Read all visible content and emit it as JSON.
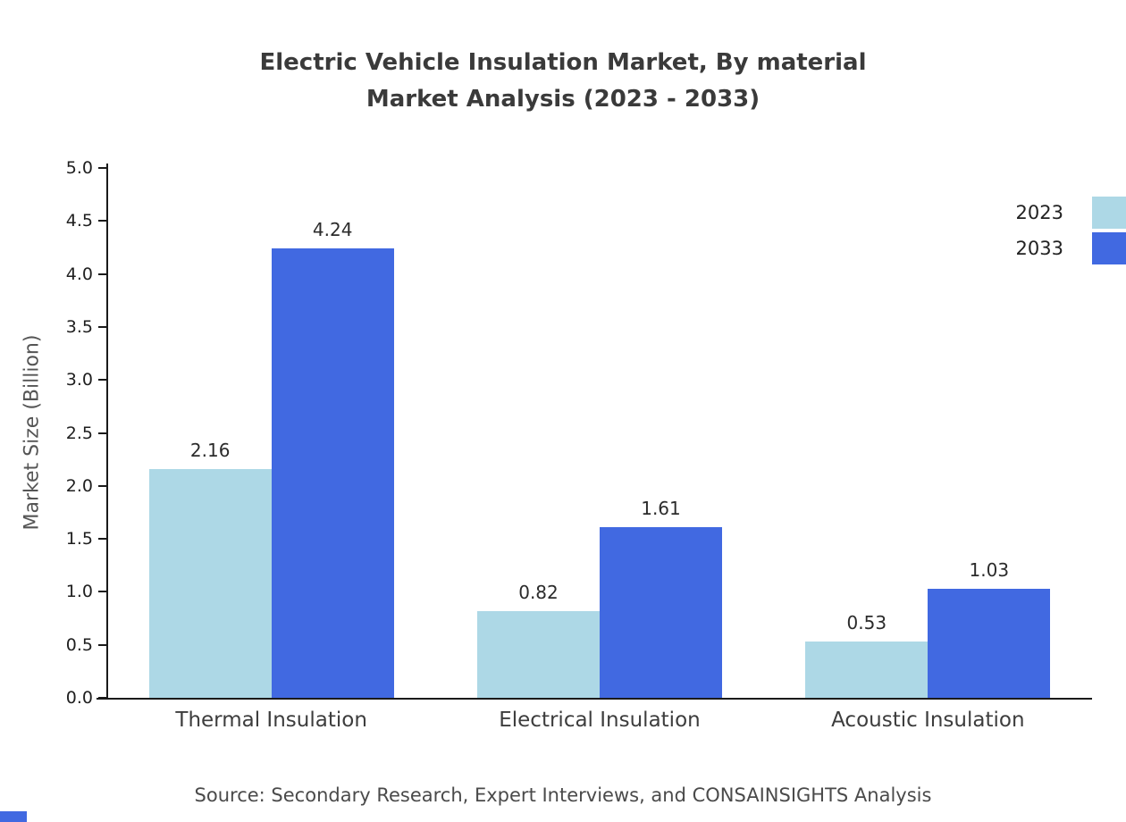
{
  "title": {
    "line1": "Electric Vehicle Insulation Market, By material",
    "line2": "Market Analysis (2023 - 2033)"
  },
  "ylabel": "Market Size (Billion)",
  "source": "Source: Secondary Research, Expert Interviews, and CONSAINSIGHTS Analysis",
  "colors": {
    "series_2023": "#ADD8E6",
    "series_2033": "#4169E1",
    "axis": "#1a1a1a"
  },
  "chart_data": {
    "type": "bar",
    "title": "Electric Vehicle Insulation Market, By material Market Analysis (2023 - 2033)",
    "categories": [
      "Thermal Insulation",
      "Electrical Insulation",
      "Acoustic Insulation"
    ],
    "series": [
      {
        "name": "2023",
        "color": "#ADD8E6",
        "values": [
          2.16,
          0.82,
          0.53
        ]
      },
      {
        "name": "2033",
        "color": "#4169E1",
        "values": [
          4.24,
          1.61,
          1.03
        ]
      }
    ],
    "xlabel": "",
    "ylabel": "Market Size (Billion)",
    "ylim": [
      0,
      5
    ],
    "ytick_step": 0.5,
    "grid": false,
    "legend_position": "top-right",
    "value_labels": true
  }
}
